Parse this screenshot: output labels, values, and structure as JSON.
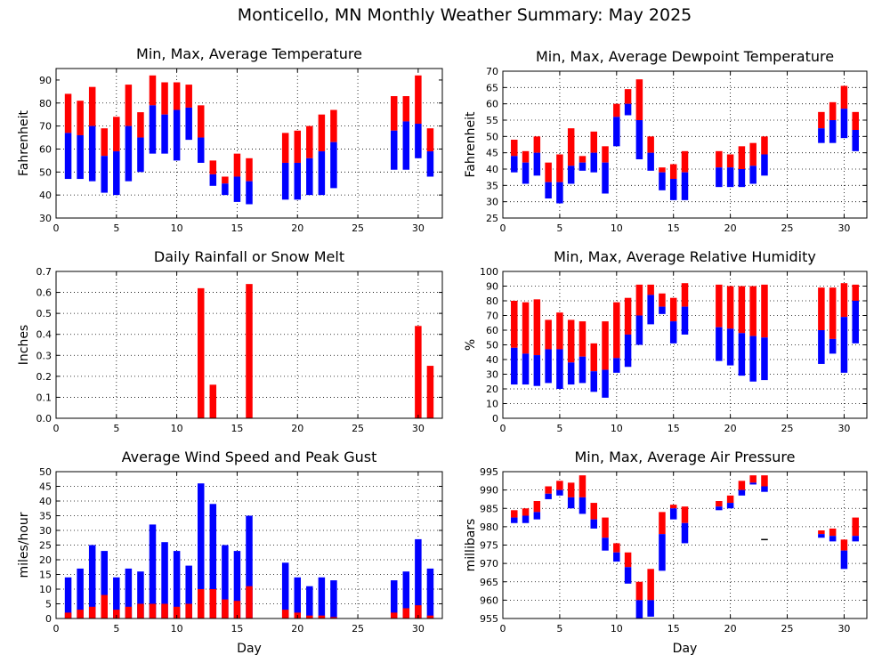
{
  "page": {
    "title": "Monticello, MN Monthly Weather Summary: May 2025"
  },
  "colors": {
    "upper": "#ff0000",
    "lower": "#0000ff",
    "frame": "#000000"
  },
  "chart_data": [
    {
      "id": "temperature",
      "type": "bar",
      "style": "floating-range",
      "title": "Min, Max, Average Temperature",
      "xlabel": "",
      "ylabel": "Fahrenheit",
      "xlim": [
        0,
        32
      ],
      "ylim": [
        30,
        95
      ],
      "xticks": [
        0,
        5,
        10,
        15,
        20,
        25,
        30
      ],
      "yticks": [
        30,
        40,
        50,
        60,
        70,
        80,
        90
      ],
      "days": [
        1,
        2,
        3,
        4,
        5,
        6,
        7,
        8,
        9,
        10,
        11,
        12,
        13,
        14,
        15,
        16,
        19,
        20,
        21,
        22,
        23,
        28,
        29,
        30,
        31
      ],
      "min": [
        47,
        47,
        46,
        41,
        40,
        46,
        50,
        58,
        58,
        55,
        64,
        54,
        44,
        40,
        37,
        36,
        38,
        38,
        40,
        40,
        43,
        51,
        51,
        56,
        48
      ],
      "avg": [
        67,
        66,
        70,
        57,
        59,
        70,
        65,
        79,
        75,
        77,
        78,
        65,
        49,
        45,
        48,
        46,
        54,
        54,
        56,
        59,
        63,
        68,
        72,
        71,
        59
      ],
      "max": [
        84,
        81,
        87,
        69,
        74,
        88,
        76,
        92,
        89,
        89,
        88,
        79,
        55,
        48,
        58,
        56,
        67,
        68,
        70,
        75,
        77,
        83,
        83,
        92,
        69
      ]
    },
    {
      "id": "dewpoint",
      "type": "bar",
      "style": "floating-range",
      "title": "Min, Max, Average Dewpoint Temperature",
      "xlabel": "",
      "ylabel": "Fahrenheit",
      "xlim": [
        0,
        32
      ],
      "ylim": [
        25,
        70
      ],
      "xticks": [
        0,
        5,
        10,
        15,
        20,
        25,
        30
      ],
      "yticks": [
        25,
        30,
        35,
        40,
        45,
        50,
        55,
        60,
        65,
        70
      ],
      "days": [
        1,
        2,
        3,
        4,
        5,
        6,
        7,
        8,
        9,
        10,
        11,
        12,
        13,
        14,
        15,
        16,
        19,
        20,
        21,
        22,
        23,
        28,
        29,
        30,
        31
      ],
      "min": [
        39,
        35.5,
        38,
        31,
        29.5,
        35.5,
        39.5,
        39,
        32.5,
        47,
        56.5,
        43,
        39.5,
        33.5,
        30.5,
        30.5,
        34.5,
        34.5,
        34.5,
        35.5,
        38,
        48,
        48,
        49.5,
        45.5
      ],
      "avg": [
        44,
        42,
        45,
        36,
        36,
        41,
        42,
        45,
        42,
        56,
        60,
        55,
        45,
        39,
        37,
        39,
        40.5,
        40.5,
        40,
        41,
        44.5,
        52.5,
        55,
        58.5,
        52
      ],
      "max": [
        49,
        45.5,
        50,
        42,
        44.5,
        52.5,
        44,
        51.5,
        47,
        60,
        64.5,
        67.5,
        50,
        40.5,
        41.5,
        45.5,
        45.5,
        44.5,
        47,
        48,
        50,
        57.5,
        60.5,
        65.5,
        57.5
      ]
    },
    {
      "id": "rainfall",
      "type": "bar",
      "style": "value-bar",
      "title": "Daily Rainfall or Snow Melt",
      "xlabel": "",
      "ylabel": "Inches",
      "xlim": [
        0,
        32
      ],
      "ylim": [
        0,
        0.7
      ],
      "xticks": [
        0,
        5,
        10,
        15,
        20,
        25,
        30
      ],
      "yticks": [
        0.0,
        0.1,
        0.2,
        0.3,
        0.4,
        0.5,
        0.6,
        0.7
      ],
      "ytick_labels": [
        "0.0",
        "0.1",
        "0.2",
        "0.3",
        "0.4",
        "0.5",
        "0.6",
        "0.7"
      ],
      "days": [
        12,
        13,
        16,
        30,
        31
      ],
      "values": [
        0.62,
        0.16,
        0.64,
        0.44,
        0.25
      ]
    },
    {
      "id": "humidity",
      "type": "bar",
      "style": "floating-range",
      "title": "Min, Max, Average Relative Humidity",
      "xlabel": "",
      "ylabel": "%",
      "xlim": [
        0,
        32
      ],
      "ylim": [
        0,
        100
      ],
      "xticks": [
        0,
        5,
        10,
        15,
        20,
        25,
        30
      ],
      "yticks": [
        0,
        10,
        20,
        30,
        40,
        50,
        60,
        70,
        80,
        90,
        100
      ],
      "days": [
        1,
        2,
        3,
        4,
        5,
        6,
        7,
        8,
        9,
        10,
        11,
        12,
        13,
        14,
        15,
        16,
        19,
        20,
        21,
        22,
        23,
        28,
        29,
        30,
        31
      ],
      "min": [
        23,
        23,
        22,
        24,
        20,
        23,
        24,
        18,
        14,
        31,
        35,
        50,
        64,
        71,
        51,
        57,
        39,
        36,
        29,
        25,
        26,
        37,
        44,
        31,
        51
      ],
      "avg": [
        48,
        44,
        43,
        47,
        47,
        38,
        42,
        32,
        33,
        41,
        57,
        70,
        84,
        76,
        66,
        76,
        62,
        61,
        58,
        56,
        55,
        60,
        54,
        69,
        80
      ],
      "max": [
        80,
        79,
        81,
        67,
        72,
        67,
        66,
        51,
        66,
        79,
        82,
        91,
        91,
        85,
        82,
        92,
        91,
        90,
        90,
        90,
        91,
        89,
        89,
        92,
        91
      ]
    },
    {
      "id": "wind",
      "type": "bar",
      "style": "stacked-value",
      "title": "Average Wind Speed and Peak Gust",
      "xlabel": "Day",
      "ylabel": "miles/hour",
      "xlim": [
        0,
        32
      ],
      "ylim": [
        0,
        50
      ],
      "xticks": [
        0,
        5,
        10,
        15,
        20,
        25,
        30
      ],
      "yticks": [
        0,
        5,
        10,
        15,
        20,
        25,
        30,
        35,
        40,
        45,
        50
      ],
      "days": [
        1,
        2,
        3,
        4,
        5,
        6,
        7,
        8,
        9,
        10,
        11,
        12,
        13,
        14,
        15,
        16,
        19,
        20,
        21,
        22,
        23,
        28,
        29,
        30,
        31
      ],
      "avg": [
        2,
        3,
        4,
        8,
        3,
        4,
        5,
        5,
        5,
        4,
        5,
        10,
        10,
        6.5,
        6,
        11,
        3,
        2,
        1,
        1,
        0.5,
        2,
        3.5,
        4.5,
        1
      ],
      "gust": [
        14,
        17,
        25,
        23,
        14,
        17,
        16,
        32,
        26,
        23,
        18,
        46,
        39,
        25,
        23,
        35,
        19,
        14,
        11,
        14,
        13,
        13,
        16,
        27,
        17
      ]
    },
    {
      "id": "pressure",
      "type": "bar",
      "style": "floating-range",
      "title": "Min, Max, Average Air Pressure",
      "xlabel": "Day",
      "ylabel": "millibars",
      "xlim": [
        0,
        32
      ],
      "ylim": [
        955,
        995
      ],
      "xticks": [
        0,
        5,
        10,
        15,
        20,
        25,
        30
      ],
      "yticks": [
        955,
        960,
        965,
        970,
        975,
        980,
        985,
        990,
        995
      ],
      "days": [
        1,
        2,
        3,
        4,
        5,
        6,
        7,
        8,
        9,
        10,
        11,
        12,
        13,
        14,
        15,
        16,
        19,
        20,
        21,
        22,
        23,
        28,
        29,
        30,
        31
      ],
      "min": [
        981,
        981,
        982,
        987.5,
        988.5,
        985,
        983.5,
        979.5,
        973.5,
        970.5,
        964.5,
        955,
        955.5,
        968,
        982,
        975.5,
        984.5,
        985,
        988.5,
        991.5,
        989.5,
        977,
        976,
        968.5,
        976
      ],
      "avg": [
        982.5,
        983,
        984,
        989,
        990,
        988,
        988,
        982,
        977,
        973,
        969,
        960,
        960,
        978,
        985,
        981,
        985.5,
        986.5,
        990,
        992,
        991,
        978,
        977.5,
        973.5,
        977.5
      ],
      "max": [
        984.5,
        985,
        987,
        991,
        992.5,
        992,
        994,
        986.5,
        982.5,
        975.5,
        973,
        965,
        968.5,
        984,
        986,
        985.5,
        987,
        988.5,
        992.5,
        994,
        994,
        979,
        979.5,
        976.5,
        982.5
      ],
      "extra_marks": [
        {
          "day": 23,
          "value": 976.5
        }
      ]
    }
  ]
}
